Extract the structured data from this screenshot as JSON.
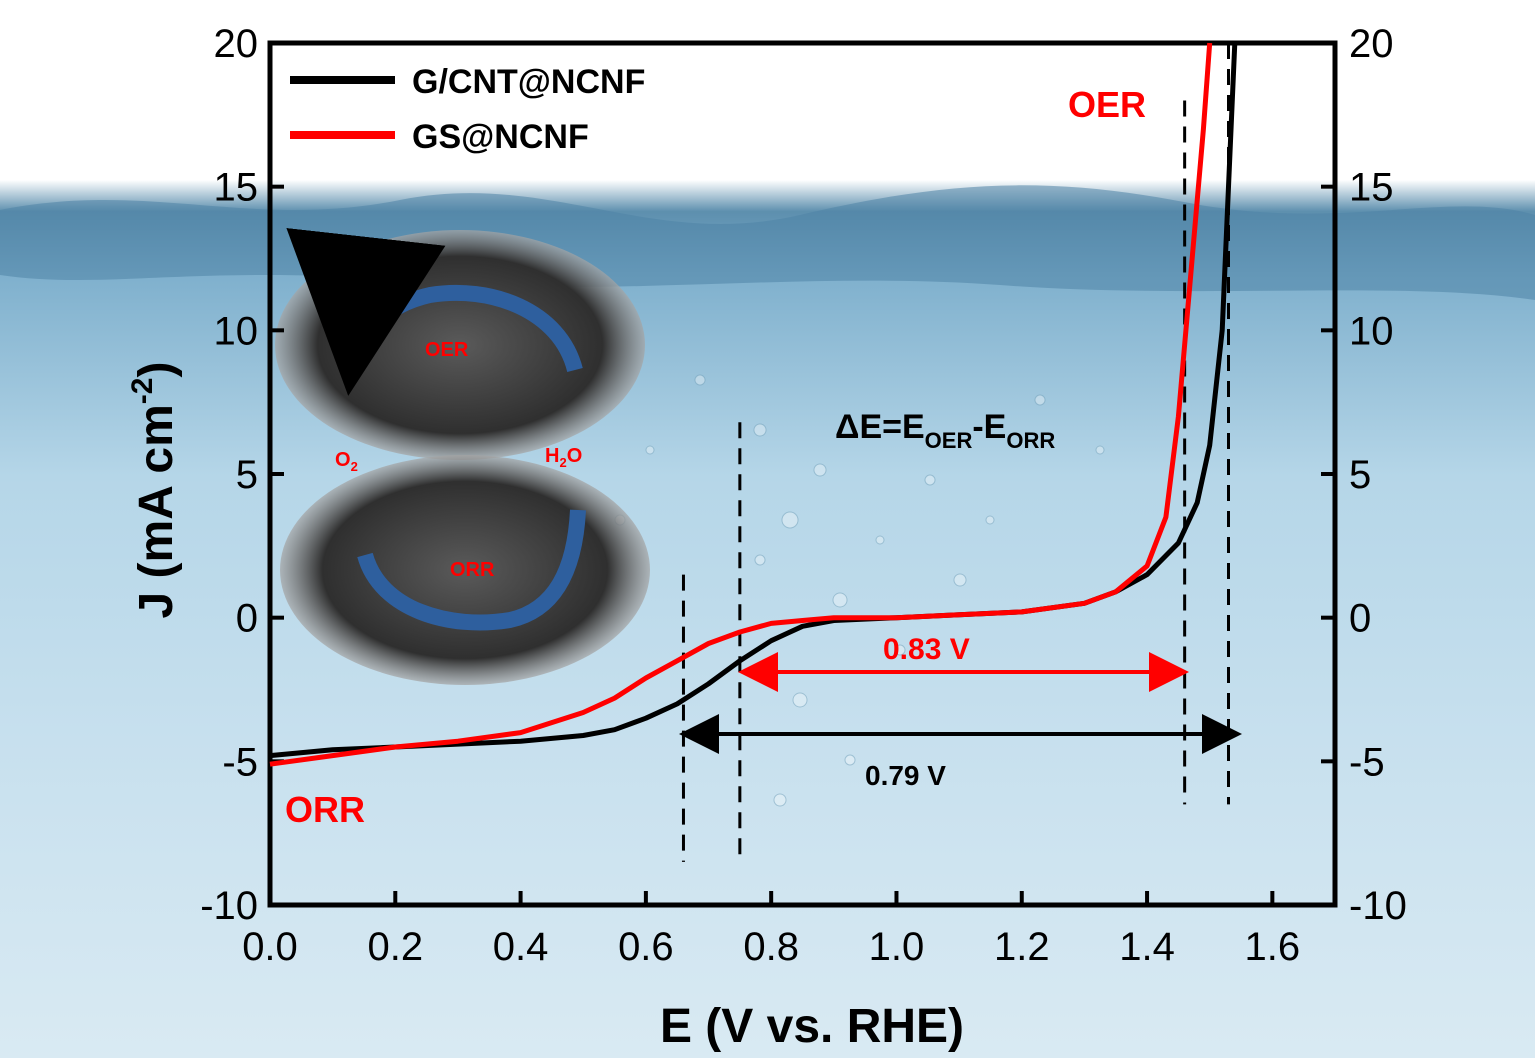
{
  "colors": {
    "black_series": "#000000",
    "red_series": "#ff0000",
    "annotation_red": "#ff0000",
    "water_top": "#ffffff",
    "water_mid": "#a9cfe3",
    "water_bottom": "#d4e7f2",
    "inset_arrow": "#2e5f9e"
  },
  "axes": {
    "xlabel": "E (V vs. RHE)",
    "ylabel_main": "J (mA cm",
    "ylabel_sup": "-2",
    "ylabel_close": ")"
  },
  "annotations": {
    "oer": "OER",
    "orr": "ORR",
    "delta_main": "ΔE=E",
    "delta_sub1": "OER",
    "delta_dash": "-E",
    "delta_sub2": "ORR",
    "red_gap": "0.83 V",
    "black_gap": "0.79 V"
  },
  "inset": {
    "oer": "OER",
    "orr": "ORR",
    "o2_main": "O",
    "o2_sub": "2",
    "h2o_h": "H",
    "h2o_sub": "2",
    "h2o_o": "O"
  },
  "chart_data": {
    "type": "line",
    "xlim": [
      0.0,
      1.7
    ],
    "ylim": [
      -10,
      20
    ],
    "x_ticks": [
      "0.0",
      "0.2",
      "0.4",
      "0.6",
      "0.8",
      "1.0",
      "1.2",
      "1.4",
      "1.6"
    ],
    "x_tick_values": [
      0.0,
      0.2,
      0.4,
      0.6,
      0.8,
      1.0,
      1.2,
      1.4,
      1.6
    ],
    "y_ticks": [
      "-10",
      "-5",
      "0",
      "5",
      "10",
      "15",
      "20"
    ],
    "y_tick_values": [
      -10,
      -5,
      0,
      5,
      10,
      15,
      20
    ],
    "legend_position": "top-left",
    "series": [
      {
        "name": "G/CNT@NCNF",
        "color": "#000000",
        "points": [
          [
            0.0,
            -4.8
          ],
          [
            0.1,
            -4.6
          ],
          [
            0.2,
            -4.5
          ],
          [
            0.3,
            -4.4
          ],
          [
            0.4,
            -4.3
          ],
          [
            0.5,
            -4.1
          ],
          [
            0.55,
            -3.9
          ],
          [
            0.6,
            -3.5
          ],
          [
            0.65,
            -3.0
          ],
          [
            0.7,
            -2.3
          ],
          [
            0.75,
            -1.5
          ],
          [
            0.8,
            -0.8
          ],
          [
            0.85,
            -0.3
          ],
          [
            0.9,
            -0.1
          ],
          [
            1.0,
            0.0
          ],
          [
            1.1,
            0.1
          ],
          [
            1.2,
            0.2
          ],
          [
            1.3,
            0.5
          ],
          [
            1.35,
            0.9
          ],
          [
            1.4,
            1.5
          ],
          [
            1.45,
            2.6
          ],
          [
            1.48,
            4.0
          ],
          [
            1.5,
            6.0
          ],
          [
            1.52,
            10.0
          ],
          [
            1.53,
            15.0
          ],
          [
            1.54,
            20.0
          ]
        ]
      },
      {
        "name": "GS@NCNF",
        "color": "#ff0000",
        "points": [
          [
            0.0,
            -5.1
          ],
          [
            0.1,
            -4.8
          ],
          [
            0.2,
            -4.5
          ],
          [
            0.3,
            -4.3
          ],
          [
            0.4,
            -4.0
          ],
          [
            0.5,
            -3.3
          ],
          [
            0.55,
            -2.8
          ],
          [
            0.6,
            -2.1
          ],
          [
            0.65,
            -1.5
          ],
          [
            0.7,
            -0.9
          ],
          [
            0.75,
            -0.5
          ],
          [
            0.8,
            -0.2
          ],
          [
            0.85,
            -0.1
          ],
          [
            0.9,
            0.0
          ],
          [
            1.0,
            0.0
          ],
          [
            1.1,
            0.1
          ],
          [
            1.2,
            0.2
          ],
          [
            1.3,
            0.5
          ],
          [
            1.35,
            0.9
          ],
          [
            1.4,
            1.8
          ],
          [
            1.43,
            3.5
          ],
          [
            1.45,
            7.0
          ],
          [
            1.47,
            12.0
          ],
          [
            1.49,
            17.0
          ],
          [
            1.5,
            20.0
          ]
        ]
      }
    ],
    "vertical_guides": [
      0.66,
      0.75,
      1.46,
      1.53
    ]
  }
}
